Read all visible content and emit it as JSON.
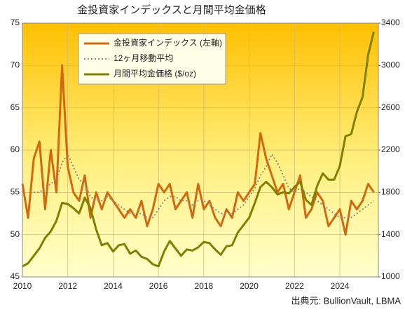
{
  "chart_data": {
    "type": "line",
    "title": "金投資家インデックスと月間平均金価格",
    "source": "出典元: BullionVault, LBMA",
    "x": [
      2010,
      2010.25,
      2010.5,
      2010.75,
      2011,
      2011.25,
      2011.5,
      2011.75,
      2012,
      2012.25,
      2012.5,
      2012.75,
      2013,
      2013.25,
      2013.5,
      2013.75,
      2014,
      2014.25,
      2014.5,
      2014.75,
      2015,
      2015.25,
      2015.5,
      2015.75,
      2016,
      2016.25,
      2016.5,
      2016.75,
      2017,
      2017.25,
      2017.5,
      2017.75,
      2018,
      2018.25,
      2018.5,
      2018.75,
      2019,
      2019.25,
      2019.5,
      2019.75,
      2020,
      2020.25,
      2020.5,
      2020.75,
      2021,
      2021.25,
      2021.5,
      2021.75,
      2022,
      2022.25,
      2022.5,
      2022.75,
      2023,
      2023.25,
      2023.5,
      2023.75,
      2024,
      2024.25,
      2024.5,
      2024.75,
      2025,
      2025.25,
      2025.5
    ],
    "xlim": [
      2010,
      2025.7
    ],
    "xticks": [
      2010,
      2012,
      2014,
      2016,
      2018,
      2020,
      2022,
      2024
    ],
    "ylim": [
      45,
      75
    ],
    "yticks": [
      45,
      50,
      55,
      60,
      65,
      70,
      75
    ],
    "y2lim": [
      1000,
      3400
    ],
    "y2ticks": [
      1000,
      1400,
      1800,
      2200,
      2600,
      3000,
      3400
    ],
    "grid": true,
    "series": [
      {
        "name": "金投資家インデックス (左軸)",
        "color": "#d2690e",
        "width": 3,
        "values": [
          56,
          52,
          59,
          61,
          53,
          60,
          55,
          70,
          58,
          55,
          54,
          57,
          52,
          55,
          53,
          55,
          54,
          53,
          52,
          53,
          52,
          54,
          51,
          53,
          56,
          55,
          56,
          53,
          54,
          55,
          52,
          56,
          53,
          54,
          52,
          51,
          53,
          52,
          55,
          54,
          55,
          56,
          62,
          59,
          57,
          55,
          56,
          53,
          55,
          57,
          52,
          53,
          55,
          54,
          51,
          52,
          53,
          50,
          54,
          53,
          54,
          56,
          55
        ]
      },
      {
        "name": "12ヶ月移動平均",
        "color": "#8a8a8a",
        "width": 2,
        "style": "dotted",
        "values": [
          null,
          null,
          55,
          55,
          55.5,
          56,
          56.5,
          58.5,
          59.5,
          58,
          56.5,
          56,
          54.5,
          54,
          54,
          54.5,
          54,
          53.5,
          53,
          52.5,
          52.5,
          52.5,
          52,
          52,
          53,
          54,
          54.5,
          54.5,
          54,
          54,
          53.5,
          54,
          54,
          53.5,
          53,
          52.5,
          52.5,
          52.5,
          53,
          53.5,
          54.5,
          55.5,
          57,
          58,
          59.5,
          58.5,
          57,
          55.5,
          55,
          55.5,
          55,
          54.5,
          54,
          53.5,
          53,
          52.5,
          52,
          52,
          52,
          52.5,
          53,
          53.5,
          54
        ]
      },
      {
        "name": "月間平均金価格 ($/oz)",
        "color": "#808000",
        "width": 3,
        "axis": "y2",
        "values": [
          1100,
          1130,
          1200,
          1270,
          1370,
          1430,
          1530,
          1700,
          1690,
          1650,
          1600,
          1750,
          1650,
          1450,
          1300,
          1320,
          1240,
          1300,
          1310,
          1220,
          1250,
          1190,
          1170,
          1120,
          1100,
          1240,
          1340,
          1270,
          1200,
          1260,
          1250,
          1280,
          1330,
          1320,
          1260,
          1210,
          1290,
          1300,
          1420,
          1490,
          1560,
          1700,
          1850,
          1900,
          1850,
          1780,
          1800,
          1790,
          1850,
          1900,
          1730,
          1680,
          1860,
          1980,
          1920,
          1920,
          2050,
          2330,
          2350,
          2560,
          2700,
          3100,
          3320
        ]
      }
    ]
  }
}
